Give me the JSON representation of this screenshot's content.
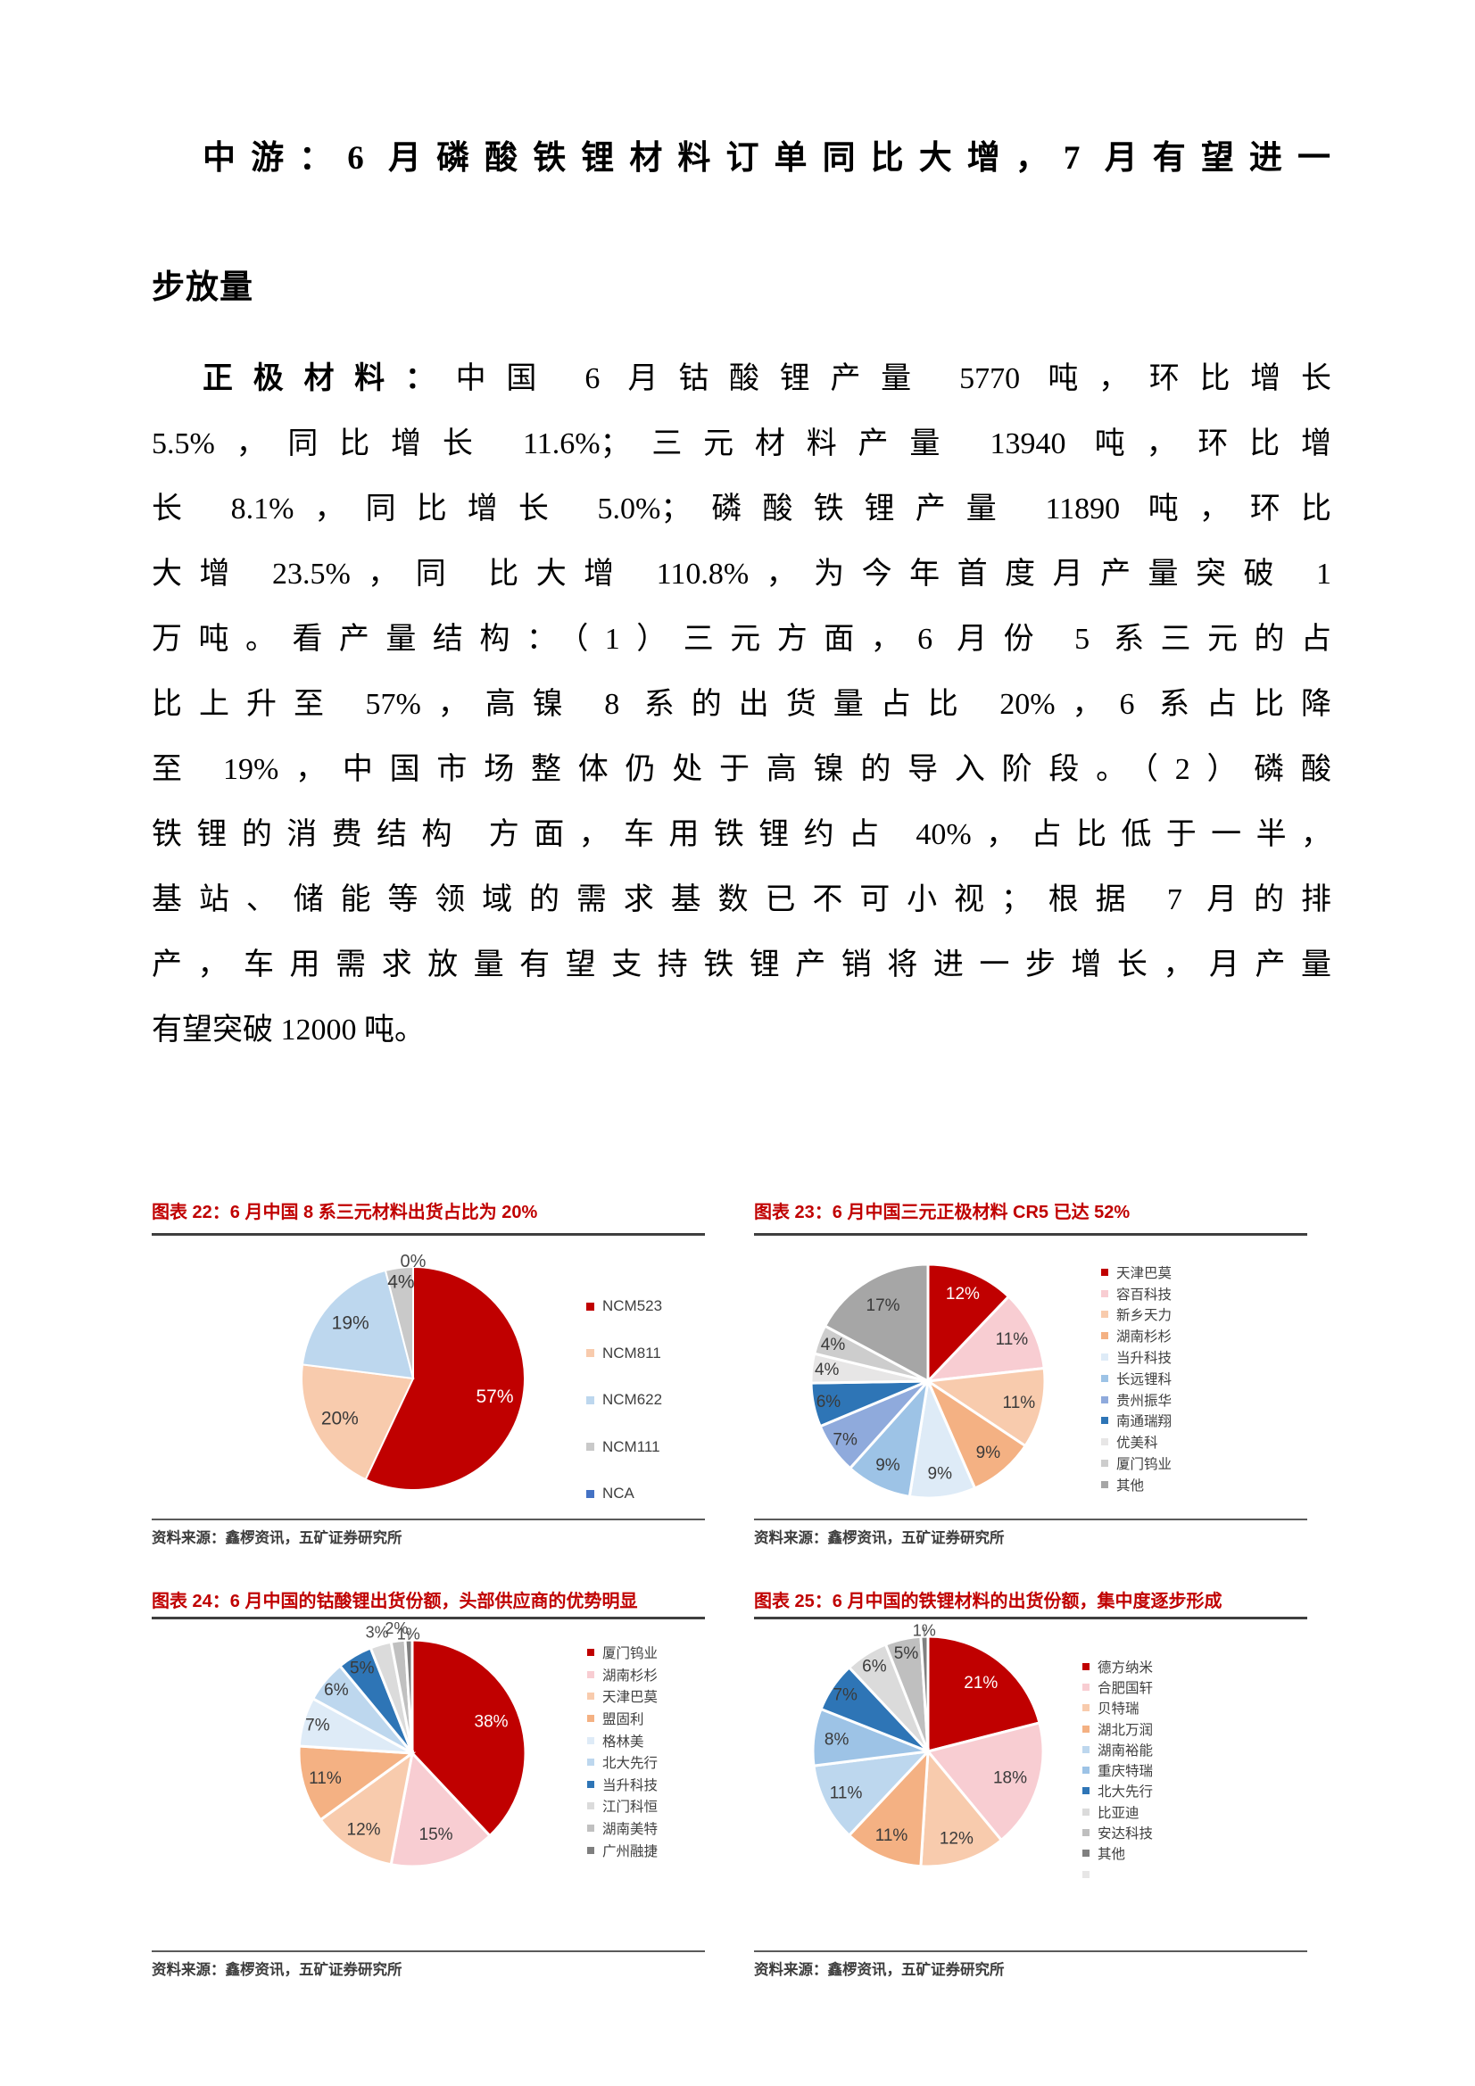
{
  "heading": {
    "line1": "中游：6 月磷酸铁锂材料订单同比大增，7 月有望进一",
    "line2": "步放量"
  },
  "body": {
    "lead": "正极材料：",
    "line1_rest": "中国 6 月钴酸锂产量 5770 吨，环比增长",
    "lines": [
      "5.5%，同比增长 11.6%；三元材料产量 13940 吨，环比增",
      "长 8.1%，同比增长 5.0%；磷酸铁锂产量 11890 吨，环比",
      "大增 23.5%，同 比大增 110.8%，为今年首度月产量突破 1",
      "万吨。看产量结构：（1）三元方面，6 月份 5 系三元的占",
      "比上升至 57%，高镍 8 系的出货量占比 20%，6 系占比降",
      "至 19%，中国市场整体仍处于高镍的导入阶段。（2）磷酸",
      "铁锂的消费结构 方面，车用铁锂约占 40%，占比低于一半，",
      "基站、储能等领域的需求基数已不可小视；根据 7 月的排",
      "产，车用需求放量有望支持铁锂产销将进一步增长，月产量",
      "有望突破 12000 吨。"
    ]
  },
  "chart_data": [
    {
      "type": "pie",
      "title": "图表 22：6 月中国 8 系三元材料出货占比为 20%",
      "source": "资料来源：鑫椤资讯，五矿证券研究所",
      "legend_position": "right",
      "slices": [
        {
          "name": "NCM523",
          "value": 57,
          "color": "#C00000",
          "lc": "#FFFFFF"
        },
        {
          "name": "NCM811",
          "value": 20,
          "color": "#F8CBAD"
        },
        {
          "name": "NCM622",
          "value": 19,
          "color": "#BDD7EE"
        },
        {
          "name": "NCM111",
          "value": 4,
          "color": "#C9C9C9"
        },
        {
          "name": "NCA",
          "value": 0,
          "color": "#4472C4",
          "out": true
        }
      ]
    },
    {
      "type": "pie",
      "title": "图表 23：6 月中国三元正极材料 CR5 已达 52%",
      "source": "资料来源：鑫椤资讯，五矿证券研究所",
      "legend_position": "right",
      "slices": [
        {
          "name": "天津巴莫",
          "value": 12,
          "color": "#C00000",
          "lc": "#FFFFFF"
        },
        {
          "name": "容百科技",
          "value": 11,
          "color": "#F8CDD2"
        },
        {
          "name": "新乡天力",
          "value": 11,
          "color": "#F8CBAD"
        },
        {
          "name": "湖南杉杉",
          "value": 9,
          "color": "#F4B183"
        },
        {
          "name": "当升科技",
          "value": 9,
          "color": "#DEEBF7"
        },
        {
          "name": "长远锂科",
          "value": 9,
          "color": "#9DC3E6"
        },
        {
          "name": "贵州振华",
          "value": 7,
          "color": "#8FAADC"
        },
        {
          "name": "南通瑞翔",
          "value": 6,
          "color": "#2E75B6"
        },
        {
          "name": "优美科",
          "value": 4,
          "color": "#E7E6E6"
        },
        {
          "name": "厦门钨业",
          "value": 4,
          "color": "#CDCDCD"
        },
        {
          "name": "其他",
          "value": 17,
          "color": "#A6A6A6"
        }
      ]
    },
    {
      "type": "pie",
      "title": "图表 24：6 月中国的钴酸锂出货份额，头部供应商的优势明显",
      "source": "资料来源：鑫椤资讯，五矿证券研究所",
      "legend_position": "right",
      "slices": [
        {
          "name": "厦门钨业",
          "value": 38,
          "color": "#C00000",
          "lc": "#FFFFFF"
        },
        {
          "name": "湖南杉杉",
          "value": 15,
          "color": "#F8CDD2"
        },
        {
          "name": "天津巴莫",
          "value": 12,
          "color": "#F8CBAD"
        },
        {
          "name": "盟固利",
          "value": 11,
          "color": "#F4B183"
        },
        {
          "name": "格林美",
          "value": 7,
          "color": "#DEEBF7"
        },
        {
          "name": "北大先行",
          "value": 6,
          "color": "#BDD7EE"
        },
        {
          "name": "当升科技",
          "value": 5,
          "color": "#2E75B6"
        },
        {
          "name": "江门科恒",
          "value": 3,
          "color": "#DBDBDB",
          "out": true
        },
        {
          "name": "湖南美特",
          "value": 2,
          "color": "#C0C0C0",
          "out": true
        },
        {
          "name": "广州融捷",
          "value": 1,
          "color": "#7F7F7F",
          "out": true
        }
      ]
    },
    {
      "type": "pie",
      "title": "图表 25：6 月中国的铁锂材料的出货份额，集中度逐步形成",
      "source": "资料来源：鑫椤资讯，五矿证券研究所",
      "legend_position": "right",
      "slices": [
        {
          "name": "德方纳米",
          "value": 21,
          "color": "#C00000",
          "lc": "#FFFFFF"
        },
        {
          "name": "合肥国轩",
          "value": 18,
          "color": "#F8CDD2"
        },
        {
          "name": "贝特瑞",
          "value": 12,
          "color": "#F8CBAD"
        },
        {
          "name": "湖北万润",
          "value": 11,
          "color": "#F4B183"
        },
        {
          "name": "湖南裕能",
          "value": 11,
          "color": "#BDD7EE"
        },
        {
          "name": "重庆特瑞",
          "value": 8,
          "color": "#9DC3E6"
        },
        {
          "name": "北大先行",
          "value": 7,
          "color": "#2E75B6"
        },
        {
          "name": "比亚迪",
          "value": 6,
          "color": "#DBDBDB"
        },
        {
          "name": "安达科技",
          "value": 5,
          "color": "#BFBFBF"
        },
        {
          "name": "其他",
          "value": 1,
          "color": "#808080",
          "out": true
        }
      ],
      "legend_extra": [
        {
          "name": "",
          "color": "#E7E6E6"
        }
      ]
    }
  ]
}
